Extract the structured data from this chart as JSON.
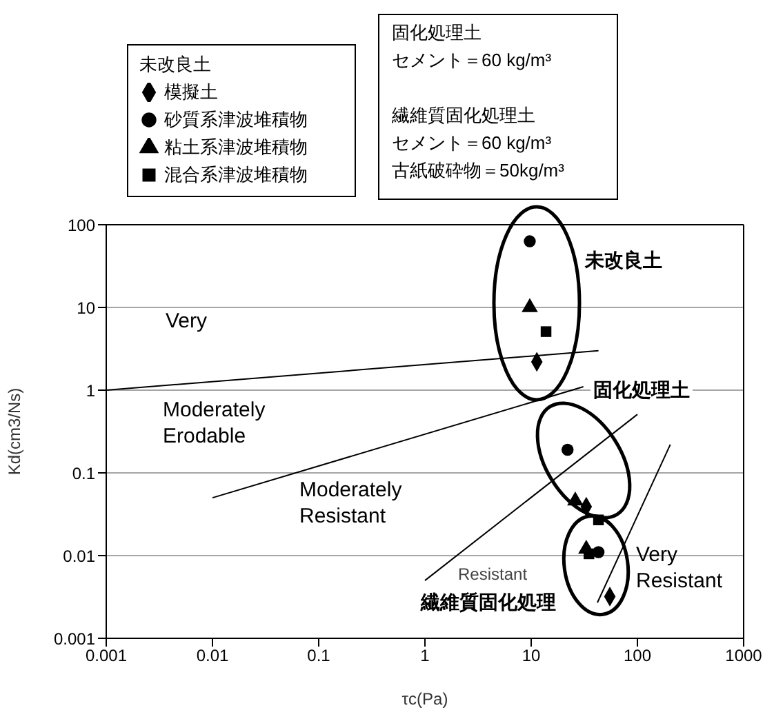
{
  "chart_data": {
    "type": "scatter",
    "xlabel": "τc(Pa)",
    "ylabel": "Kd(cm3/Ns)",
    "log": "xy",
    "xlim": [
      0.001,
      1000
    ],
    "xticks": [
      0.001,
      0.01,
      0.1,
      1,
      10,
      100,
      1000
    ],
    "ylim": [
      0.001,
      100
    ],
    "yticks": [
      0.001,
      0.01,
      0.1,
      1,
      10,
      100
    ],
    "grid": "y",
    "legend": "top left",
    "legend_title": "未改良土",
    "series": [
      {
        "name": "模擬土",
        "color": "#000000",
        "marker": "diamond",
        "x": [
          11.3,
          33,
          55
        ],
        "values": [
          2.2,
          0.039,
          0.0032
        ]
      },
      {
        "name": "砂質系津波堆積物",
        "color": "#000000",
        "marker": "circle",
        "x": [
          9.7,
          22,
          43
        ],
        "values": [
          63,
          0.19,
          0.011
        ]
      },
      {
        "name": "粘土系津波堆積物",
        "color": "#000000",
        "marker": "triangle",
        "x": [
          9.7,
          26,
          33
        ],
        "values": [
          10,
          0.046,
          0.012
        ]
      },
      {
        "name": "混合系津波堆積物",
        "color": "#000000",
        "marker": "square",
        "x": [
          13.8,
          43,
          35
        ],
        "values": [
          5.1,
          0.027,
          0.0105
        ]
      },
      {
        "type": "line",
        "color": "#000000",
        "marker": "none",
        "x": [
          0.001,
          43
        ],
        "values": [
          1,
          3
        ]
      },
      {
        "type": "line",
        "color": "#000000",
        "marker": "none",
        "x": [
          0.01,
          31
        ],
        "values": [
          0.05,
          1.1
        ]
      },
      {
        "type": "line",
        "color": "#000000",
        "marker": "none",
        "x": [
          1,
          100
        ],
        "values": [
          0.005,
          0.51
        ]
      },
      {
        "type": "line",
        "color": "#000000",
        "marker": "none",
        "x": [
          42,
          204
        ],
        "values": [
          0.0027,
          0.22
        ]
      }
    ],
    "annotations": [
      "固化処理土",
      "セメント＝60 kg/m³",
      "繊維質固化処理土",
      "セメント＝60 kg/m³",
      "古紙破砕物＝50kg/m³",
      "Very",
      "Moderately Erodable",
      "Moderately Resistant",
      "Resistant",
      "Very Resistant",
      "未改良土",
      "固化処理土",
      "繊維質固化処理"
    ]
  }
}
